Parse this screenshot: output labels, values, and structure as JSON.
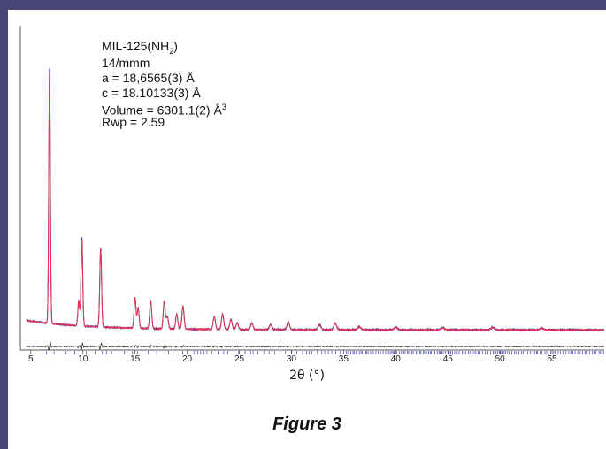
{
  "annotation": {
    "formula_main": "MIL-125(NH",
    "formula_sub": "2",
    "formula_close": ")",
    "space_group": "14/mmm",
    "a_param": "a = 18,6565(3) Å",
    "c_param": "c = 18.10133(3) Å",
    "volume_main": "Volume = 6301.1(2) Å",
    "volume_sup": "3",
    "rwp": "Rwp = 2.59"
  },
  "caption": "Figure 3",
  "colors": {
    "frame": "#4a4778",
    "observed": "#2a2aa8",
    "calculated": "#e8334a",
    "difference": "#333333",
    "reflection_ticks": "#3a3ab8"
  },
  "chart_data": {
    "type": "line",
    "title": "",
    "xlabel": "2θ (°)",
    "ylabel": "",
    "xlim": [
      4,
      60
    ],
    "ylim": [
      0,
      100
    ],
    "x_ticks": [
      5,
      10,
      15,
      20,
      25,
      30,
      35,
      40,
      45,
      50,
      55
    ],
    "grid": false,
    "peaks": [
      {
        "x": 6.8,
        "y": 100
      },
      {
        "x": 9.6,
        "y": 10
      },
      {
        "x": 9.9,
        "y": 35
      },
      {
        "x": 11.7,
        "y": 31
      },
      {
        "x": 15.0,
        "y": 12
      },
      {
        "x": 15.3,
        "y": 8
      },
      {
        "x": 16.5,
        "y": 11
      },
      {
        "x": 17.8,
        "y": 11
      },
      {
        "x": 18.1,
        "y": 5
      },
      {
        "x": 19.0,
        "y": 6
      },
      {
        "x": 19.6,
        "y": 9
      },
      {
        "x": 22.6,
        "y": 5
      },
      {
        "x": 23.4,
        "y": 6
      },
      {
        "x": 24.2,
        "y": 4
      },
      {
        "x": 24.8,
        "y": 2.5
      },
      {
        "x": 26.2,
        "y": 2.5
      },
      {
        "x": 28.0,
        "y": 2
      },
      {
        "x": 29.7,
        "y": 3
      },
      {
        "x": 32.7,
        "y": 2
      },
      {
        "x": 34.2,
        "y": 2.5
      },
      {
        "x": 36.5,
        "y": 1.2
      },
      {
        "x": 40.0,
        "y": 1
      },
      {
        "x": 44.5,
        "y": 0.8
      },
      {
        "x": 49.3,
        "y": 0.9
      },
      {
        "x": 54.0,
        "y": 0.6
      }
    ],
    "baseline": {
      "start": 5,
      "end": 1
    },
    "series": [
      {
        "name": "",
        "color": "#2a2aa8"
      },
      {
        "name": "",
        "color": "#e8334a"
      },
      {
        "name": "",
        "color": "#333333"
      }
    ]
  }
}
